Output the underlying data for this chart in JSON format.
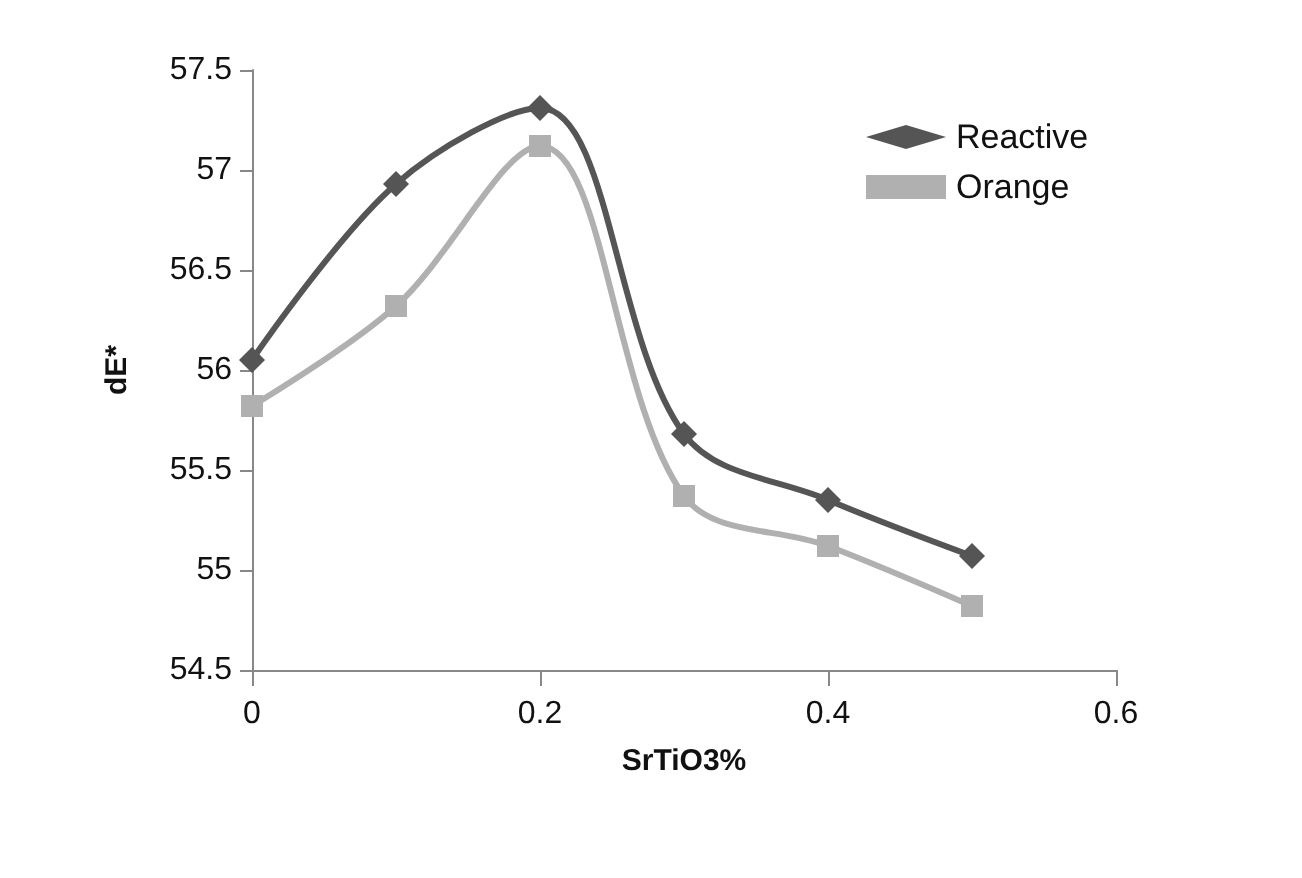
{
  "chart_data": {
    "type": "line",
    "xlabel": "SrTiO3%",
    "ylabel": "dE*",
    "x": [
      0,
      0.1,
      0.2,
      0.3,
      0.4,
      0.5
    ],
    "series": [
      {
        "name": "Reactive",
        "color": "#555555",
        "marker": "diamond",
        "values": [
          56.05,
          56.93,
          57.31,
          55.68,
          55.35,
          55.07
        ]
      },
      {
        "name": "Orange",
        "color": "#b0b0b0",
        "marker": "square",
        "values": [
          55.82,
          56.32,
          57.12,
          55.37,
          55.12,
          54.82
        ]
      }
    ],
    "xlim": [
      0,
      0.6
    ],
    "xticks": [
      0,
      0.2,
      0.4,
      0.6
    ],
    "ylim": [
      54.5,
      57.5
    ],
    "yticks": [
      54.5,
      55,
      55.5,
      56,
      56.5,
      57,
      57.5
    ],
    "grid": false,
    "legend": "top right",
    "line_style": "solid"
  }
}
